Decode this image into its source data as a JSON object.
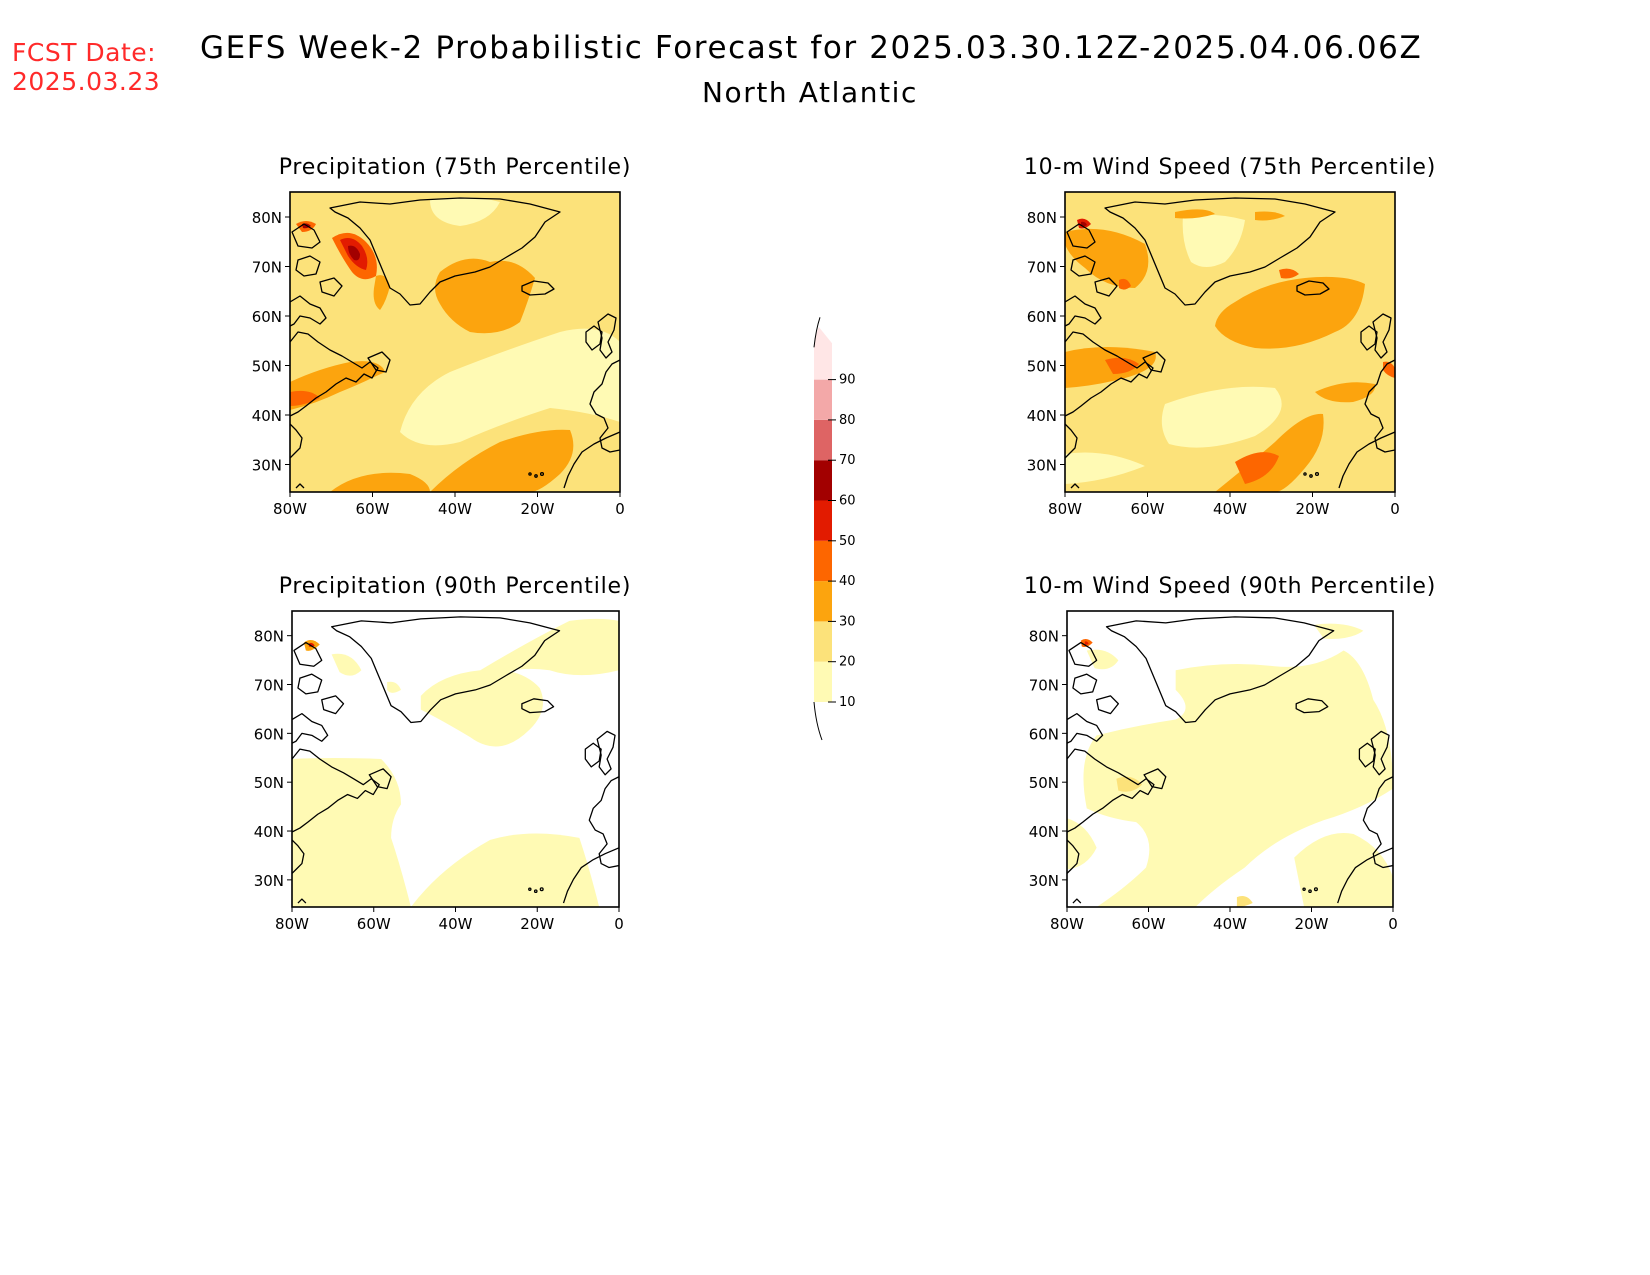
{
  "header": {
    "fcst_label": "FCST Date:",
    "fcst_date": "2025.03.23",
    "title": "GEFS Week-2 Probabilistic Forecast for 2025.03.30.12Z-2025.04.06.06Z",
    "subtitle": "North Atlantic"
  },
  "panels": [
    {
      "title": "Precipitation (75th Percentile)"
    },
    {
      "title": "10-m Wind Speed (75th Percentile)"
    },
    {
      "title": "Precipitation (90th Percentile)"
    },
    {
      "title": "10-m Wind Speed (90th Percentile)"
    }
  ],
  "axes": {
    "lat_labels": [
      "80N",
      "70N",
      "60N",
      "50N",
      "40N",
      "30N"
    ],
    "lon_labels": [
      "80W",
      "60W",
      "40W",
      "20W",
      "0"
    ]
  },
  "colorbar": {
    "levels": [
      "10",
      "20",
      "30",
      "40",
      "50",
      "60",
      "70",
      "80",
      "90"
    ],
    "colors": [
      "#fffab4",
      "#fce27a",
      "#fca40e",
      "#fd6600",
      "#e21b00",
      "#a20000",
      "#de6464",
      "#f3a8a8",
      "#ffe6e6"
    ]
  },
  "colors": {
    "fcst_date": "#ff2a2a",
    "coastline": "#000000"
  }
}
